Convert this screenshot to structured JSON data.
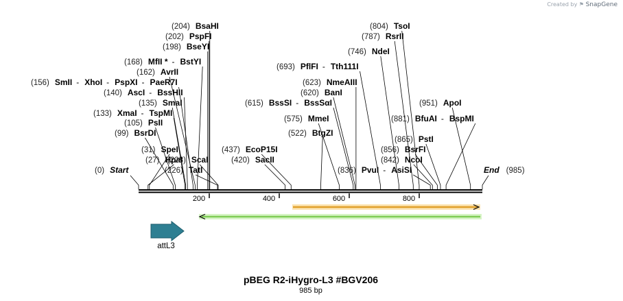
{
  "credit": {
    "prefix": "Created by",
    "brand": "SnapGene"
  },
  "title": "pBEG R2-iHygro-L3   #BGV206",
  "length_label": "985 bp",
  "sequence": {
    "length": 985
  },
  "ends": {
    "start": {
      "pos": "(0)",
      "label": "Start"
    },
    "end": {
      "pos": "(985)",
      "label": "End"
    }
  },
  "ruler_ticks": [
    "200",
    "400",
    "600",
    "800"
  ],
  "sites": [
    {
      "pos": "(27)",
      "names": [
        "HpaI"
      ]
    },
    {
      "pos": "(31)",
      "names": [
        "SpeI"
      ]
    },
    {
      "pos": "(99)",
      "names": [
        "BsrDI"
      ]
    },
    {
      "pos": "(105)",
      "names": [
        "PsII"
      ]
    },
    {
      "pos": "(133)",
      "names": [
        "XmaI",
        "TspMI"
      ]
    },
    {
      "pos": "(135)",
      "names": [
        "SmaI"
      ]
    },
    {
      "pos": "(140)",
      "names": [
        "AscI",
        "BssHII"
      ]
    },
    {
      "pos": "(156)",
      "names": [
        "SmII",
        "XhoI",
        "PspXI",
        "PaeR7I"
      ]
    },
    {
      "pos": "(162)",
      "names": [
        "AvrII"
      ]
    },
    {
      "pos": "(168)",
      "names": [
        "MfII *",
        "BstYI"
      ]
    },
    {
      "pos": "(198)",
      "names": [
        "BseYI"
      ]
    },
    {
      "pos": "(202)",
      "names": [
        "PspFI"
      ]
    },
    {
      "pos": "(204)",
      "names": [
        "BsaHI"
      ]
    },
    {
      "pos": "(226)",
      "names": [
        "TatI"
      ]
    },
    {
      "pos": "(228)",
      "names": [
        "ScaI"
      ]
    },
    {
      "pos": "(420)",
      "names": [
        "SacII"
      ]
    },
    {
      "pos": "(437)",
      "names": [
        "EcoP15I"
      ]
    },
    {
      "pos": "(522)",
      "names": [
        "BtgZI"
      ]
    },
    {
      "pos": "(575)",
      "names": [
        "MmeI"
      ]
    },
    {
      "pos": "(615)",
      "names": [
        "BssSI",
        "BssSαI"
      ]
    },
    {
      "pos": "(620)",
      "names": [
        "BanI"
      ]
    },
    {
      "pos": "(623)",
      "names": [
        "NmeAIII"
      ]
    },
    {
      "pos": "(693)",
      "names": [
        "PflFI",
        "Tth111I"
      ]
    },
    {
      "pos": "(746)",
      "names": [
        "NdeI"
      ]
    },
    {
      "pos": "(787)",
      "names": [
        "RsrII"
      ]
    },
    {
      "pos": "(804)",
      "names": [
        "TsoI"
      ]
    },
    {
      "pos": "(836)",
      "names": [
        "PvuI",
        "AsiSI"
      ]
    },
    {
      "pos": "(842)",
      "names": [
        "NcoI"
      ]
    },
    {
      "pos": "(856)",
      "names": [
        "BsrFI"
      ]
    },
    {
      "pos": "(865)",
      "names": [
        "PstI"
      ]
    },
    {
      "pos": "(881)",
      "names": [
        "BfuAI",
        "BspMI"
      ]
    },
    {
      "pos": "(951)",
      "names": [
        "ApoI"
      ]
    }
  ],
  "features": [
    {
      "name": "attL3",
      "color": "#2e7f92"
    },
    {
      "name": "",
      "color": "#f0b33a"
    },
    {
      "name": "",
      "color": "#9be07a"
    }
  ]
}
